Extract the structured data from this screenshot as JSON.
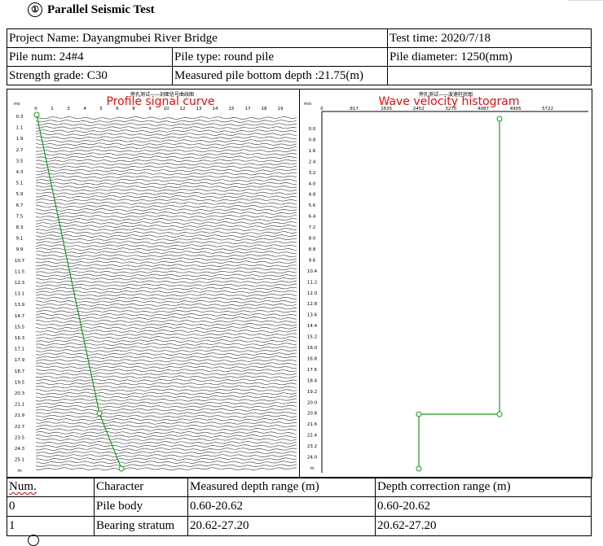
{
  "section": {
    "number": "①",
    "title": "Parallel Seismic Test"
  },
  "info": {
    "project_name": "Project Name: Dayangmubei River Bridge",
    "test_time": "Test time: 2020/7/18",
    "pile_num": "Pile num: 24#4",
    "pile_type": "Pile type: round pile",
    "pile_diameter": "Pile diameter: 1250(mm)",
    "strength_grade": "Strength grade: C30",
    "measured_bottom": "Measured pile bottom depth :21.75(m)"
  },
  "profile_chart": {
    "overlay_label": "Profile signal curve",
    "chinese_title": "旁孔测试——剖面信号曲线图",
    "x_unit": "ms",
    "x_ticks": [
      "0",
      "1",
      "3",
      "4",
      "5",
      "6",
      "8",
      "9",
      "10",
      "12",
      "13",
      "14",
      "15",
      "17",
      "18",
      "19"
    ],
    "y_ticks": [
      "0.3",
      "1.1",
      "1.9",
      "2.7",
      "3.5",
      "4.3",
      "5.1",
      "5.9",
      "6.7",
      "7.5",
      "8.3",
      "9.1",
      "9.9",
      "10.7",
      "11.5",
      "12.3",
      "13.1",
      "13.9",
      "14.7",
      "15.5",
      "16.3",
      "17.1",
      "17.9",
      "18.7",
      "19.5",
      "20.3",
      "21.1",
      "21.9",
      "22.7",
      "23.5",
      "24.3",
      "25.1",
      "m"
    ],
    "line_color": "#1a9a1a",
    "label_color": "#e01010"
  },
  "velocity_chart": {
    "overlay_label": "Wave velocity histogram",
    "chinese_title": "旁孔测试——波速柱状图",
    "x_unit": "m/s",
    "x_ticks": [
      "0",
      "817",
      "1635",
      "2452",
      "3270",
      "4087",
      "4905",
      "5722"
    ],
    "y_ticks": [
      "0.0",
      "0.8",
      "1.6",
      "2.4",
      "3.2",
      "4.0",
      "4.8",
      "5.6",
      "6.4",
      "7.2",
      "8.0",
      "8.8",
      "9.6",
      "10.4",
      "11.2",
      "12.0",
      "12.8",
      "13.6",
      "14.4",
      "15.2",
      "16.0",
      "16.8",
      "17.6",
      "18.4",
      "19.2",
      "20.0",
      "20.8",
      "21.6",
      "22.4",
      "23.2",
      "24.0",
      "m",
      "25.9"
    ]
  },
  "results": {
    "headers": [
      "Num.",
      "Character",
      "Measured depth range (m)",
      "Depth correction range (m)"
    ],
    "rows": [
      [
        "0",
        "Pile body",
        "0.60-20.62",
        "0.60-20.62"
      ],
      [
        "1",
        "Bearing stratum",
        "20.62-27.20",
        "20.62-27.20"
      ]
    ]
  }
}
